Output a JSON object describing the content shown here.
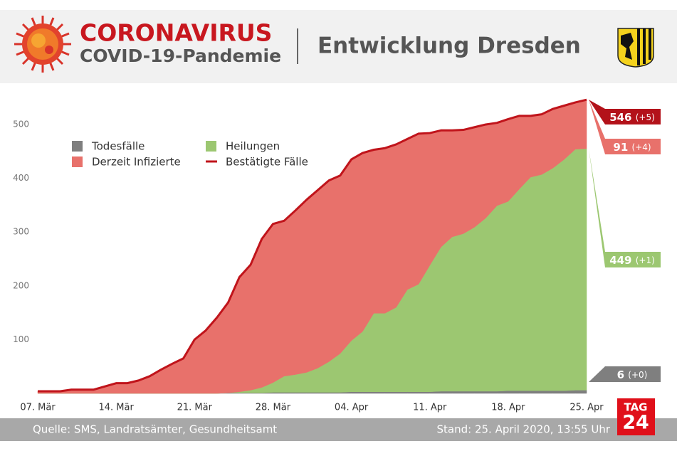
{
  "header": {
    "title": "CORONAVIRUS",
    "subtitle": "COVID-19-Pandemie",
    "heading": "Entwicklung Dresden"
  },
  "chart_data": {
    "type": "area",
    "stacked": true,
    "categories": [
      "07. Mär",
      null,
      null,
      null,
      null,
      null,
      null,
      "14. Mär",
      null,
      null,
      null,
      null,
      null,
      null,
      "21. Mär",
      null,
      null,
      null,
      null,
      null,
      null,
      "28. Mär",
      null,
      null,
      null,
      null,
      null,
      null,
      "04. Apr",
      null,
      null,
      null,
      null,
      null,
      null,
      "11. Apr",
      null,
      null,
      null,
      null,
      null,
      null,
      "18. Apr",
      null,
      null,
      null,
      null,
      null,
      null,
      "25. Apr"
    ],
    "ylim": [
      0,
      560
    ],
    "yticks": [
      100,
      200,
      300,
      400,
      500
    ],
    "grid": false,
    "series": [
      {
        "name": "Todesfälle",
        "color": "#7f7f7f",
        "values": [
          0,
          0,
          0,
          0,
          0,
          0,
          0,
          0,
          0,
          0,
          0,
          0,
          0,
          0,
          0,
          0,
          0,
          1,
          1,
          1,
          1,
          2,
          2,
          2,
          2,
          2,
          2,
          2,
          3,
          3,
          3,
          3,
          3,
          3,
          3,
          3,
          4,
          4,
          4,
          4,
          4,
          4,
          5,
          5,
          5,
          5,
          5,
          5,
          6,
          6
        ],
        "value_labels": [
          null,
          null,
          null,
          null,
          null,
          null,
          null,
          null,
          null,
          null,
          null,
          null,
          null,
          null,
          null,
          null,
          null,
          null,
          null,
          null,
          null,
          null,
          null,
          null,
          null,
          null,
          null,
          null,
          null,
          null,
          null,
          null,
          null,
          null,
          null,
          null,
          null,
          null,
          null,
          null,
          null,
          null,
          null,
          null,
          null,
          null,
          null,
          null,
          null,
          "6 (+0)"
        ]
      },
      {
        "name": "Heilungen",
        "color": "#9cc771",
        "values": [
          0,
          0,
          0,
          0,
          0,
          0,
          0,
          0,
          0,
          0,
          0,
          0,
          0,
          0,
          0,
          0,
          0,
          0,
          2,
          5,
          10,
          18,
          30,
          33,
          37,
          45,
          57,
          72,
          95,
          112,
          146,
          146,
          157,
          190,
          200,
          235,
          268,
          287,
          293,
          305,
          322,
          345,
          352,
          375,
          397,
          402,
          414,
          430,
          448,
          449
        ],
        "value_labels": [
          null,
          null,
          null,
          null,
          null,
          null,
          null,
          null,
          null,
          null,
          null,
          null,
          null,
          null,
          null,
          null,
          null,
          null,
          null,
          null,
          null,
          null,
          null,
          null,
          null,
          null,
          null,
          null,
          null,
          null,
          null,
          null,
          null,
          null,
          null,
          null,
          null,
          null,
          null,
          null,
          null,
          null,
          null,
          null,
          null,
          null,
          null,
          null,
          null,
          "449 (+1)"
        ]
      },
      {
        "name": "Derzeit Infizierte",
        "color": "#e8716b",
        "values": [
          4,
          4,
          4,
          7,
          7,
          7,
          13,
          19,
          19,
          24,
          32,
          44,
          55,
          65,
          100,
          117,
          141,
          168,
          213,
          233,
          276,
          295,
          289,
          305,
          321,
          331,
          337,
          331,
          337,
          332,
          304,
          307,
          303,
          280,
          280,
          246,
          217,
          198,
          193,
          186,
          174,
          154,
          153,
          136,
          114,
          112,
          110,
          100,
          87,
          91
        ],
        "value_labels": [
          null,
          null,
          null,
          null,
          null,
          null,
          null,
          null,
          null,
          null,
          null,
          null,
          null,
          null,
          null,
          null,
          null,
          null,
          null,
          null,
          null,
          null,
          null,
          null,
          null,
          null,
          null,
          null,
          null,
          null,
          null,
          null,
          null,
          null,
          null,
          null,
          null,
          null,
          null,
          null,
          null,
          null,
          null,
          null,
          null,
          null,
          null,
          null,
          null,
          "91 (+4)"
        ]
      },
      {
        "name": "Bestätigte Fälle",
        "color": "#c0141b",
        "type": "line",
        "values": [
          4,
          4,
          4,
          7,
          7,
          7,
          13,
          19,
          19,
          24,
          32,
          44,
          55,
          65,
          100,
          117,
          141,
          169,
          216,
          239,
          287,
          315,
          321,
          340,
          360,
          378,
          396,
          405,
          435,
          447,
          453,
          456,
          463,
          473,
          483,
          484,
          489,
          489,
          490,
          495,
          500,
          503,
          510,
          516,
          516,
          519,
          529,
          535,
          541,
          546
        ],
        "value_labels": [
          null,
          null,
          null,
          null,
          null,
          null,
          null,
          null,
          null,
          null,
          null,
          null,
          null,
          null,
          null,
          null,
          null,
          null,
          null,
          null,
          null,
          null,
          null,
          null,
          null,
          null,
          null,
          null,
          null,
          null,
          null,
          null,
          null,
          null,
          null,
          null,
          null,
          null,
          null,
          null,
          null,
          null,
          null,
          null,
          null,
          null,
          null,
          null,
          null,
          "546 (+5)"
        ]
      }
    ]
  },
  "footer": {
    "source": "Quelle: SMS, Landratsämter, Gesundheitsamt",
    "date": "Stand: 25. April 2020, 13:55 Uhr",
    "logo_top": "TAG",
    "logo_bottom": "24"
  }
}
